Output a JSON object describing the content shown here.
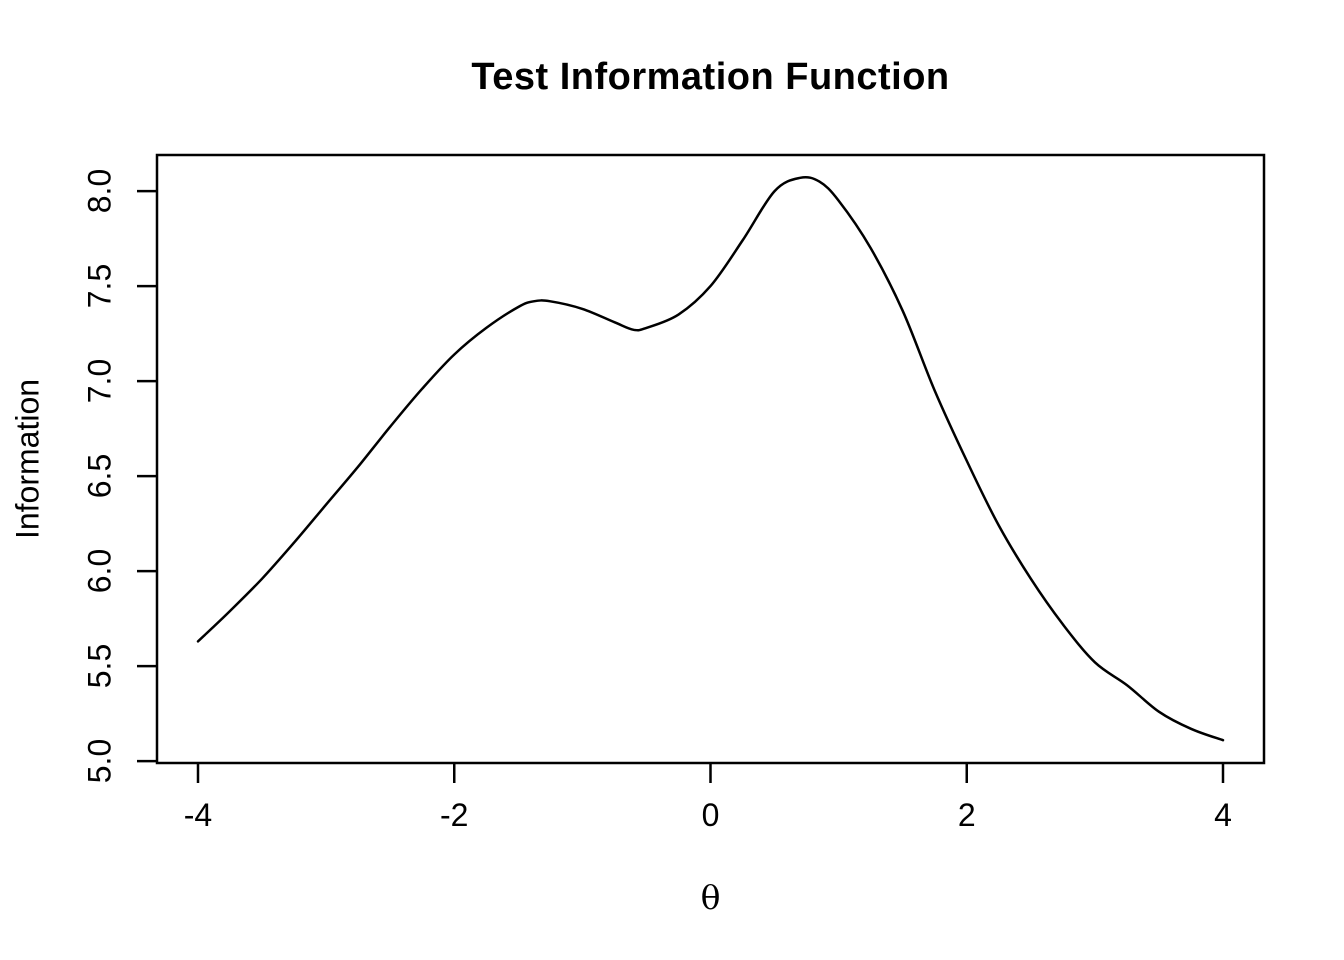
{
  "chart_data": {
    "type": "line",
    "title": "Test Information Function",
    "xlabel": "θ",
    "ylabel": "Information",
    "line_color": "#000000",
    "axis_color": "#000000",
    "background": "#ffffff",
    "grid": false,
    "legend": "none",
    "xlim": [
      -4.32,
      4.32
    ],
    "ylim": [
      4.99,
      8.19
    ],
    "xticks": [
      -4,
      -2,
      0,
      2,
      4
    ],
    "xtick_labels": [
      "-4",
      "-2",
      "0",
      "2",
      "4"
    ],
    "yticks": [
      5.0,
      5.5,
      6.0,
      6.5,
      7.0,
      7.5,
      8.0
    ],
    "ytick_labels": [
      "5.0",
      "5.5",
      "6.0",
      "6.5",
      "7.0",
      "7.5",
      "8.0"
    ],
    "x": [
      -4.0,
      -3.75,
      -3.5,
      -3.25,
      -3.0,
      -2.75,
      -2.5,
      -2.25,
      -2.0,
      -1.75,
      -1.5,
      -1.38,
      -1.25,
      -1.0,
      -0.75,
      -0.6,
      -0.5,
      -0.25,
      0.0,
      0.25,
      0.5,
      0.7,
      0.85,
      1.0,
      1.25,
      1.5,
      1.75,
      2.0,
      2.25,
      2.5,
      2.75,
      3.0,
      3.25,
      3.5,
      3.75,
      4.0
    ],
    "y": [
      5.63,
      5.79,
      5.96,
      6.15,
      6.35,
      6.55,
      6.76,
      6.96,
      7.14,
      7.28,
      7.39,
      7.42,
      7.42,
      7.38,
      7.31,
      7.27,
      7.28,
      7.35,
      7.5,
      7.74,
      8.0,
      8.07,
      8.05,
      7.95,
      7.7,
      7.37,
      6.95,
      6.58,
      6.24,
      5.96,
      5.72,
      5.52,
      5.4,
      5.26,
      5.17,
      5.11
    ],
    "annotations": {
      "local_max": {
        "x": -1.38,
        "y": 7.42
      },
      "local_min": {
        "x": -0.6,
        "y": 7.27
      },
      "global_max": {
        "x": 0.7,
        "y": 8.07
      },
      "left_end": {
        "x": -4.0,
        "y": 5.63
      },
      "right_end": {
        "x": 4.0,
        "y": 5.11
      }
    }
  }
}
